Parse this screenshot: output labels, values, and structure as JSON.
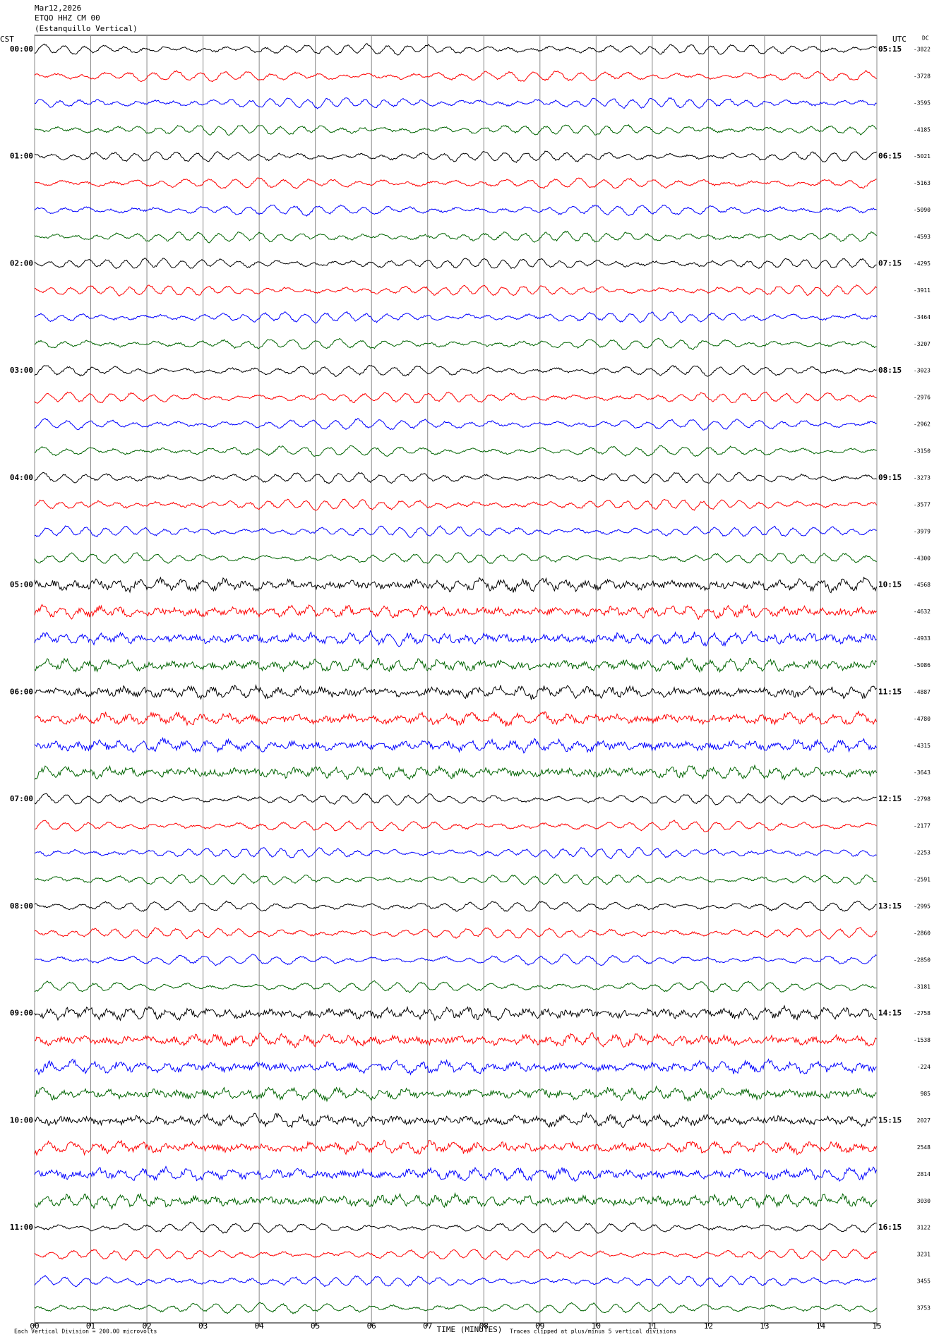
{
  "chart_data": {
    "type": "helicorder",
    "title": "Mar12,2026",
    "subtitle": "ETQO HHZ CM 00",
    "station": "(Estanquillo Vertical)",
    "left_axis_label": "CST",
    "right_axis_label": "UTC",
    "dc_label": "DC",
    "cst_labels": [
      "00:00",
      "01:00",
      "02:00",
      "03:00",
      "04:00",
      "05:00",
      "06:00",
      "07:00",
      "08:00",
      "09:00",
      "10:00",
      "11:00"
    ],
    "utc_labels": [
      "05:15",
      "06:15",
      "07:15",
      "08:15",
      "09:15",
      "10:15",
      "11:15",
      "12:15",
      "13:15",
      "14:15",
      "15:15",
      "16:15"
    ],
    "dc_values": [
      -3822,
      -3728,
      -3595,
      -4185,
      -5021,
      -5163,
      -5090,
      -4593,
      -4295,
      -3911,
      -3464,
      -3207,
      -3023,
      -2976,
      -2962,
      -3150,
      -3273,
      -3577,
      -3979,
      -4300,
      -4568,
      -4632,
      -4933,
      -5086,
      -4887,
      -4780,
      -4315,
      -3643,
      -2798,
      -2177,
      -2253,
      -2591,
      -2995,
      -2860,
      -2850,
      -3181,
      -2758,
      -1538,
      -224,
      985,
      2027,
      2548,
      2814,
      3030,
      3122,
      3231,
      3455,
      3753
    ],
    "trace_colors": [
      "#000000",
      "#ff0000",
      "#0000ff",
      "#006400"
    ],
    "xlim": [
      0,
      15
    ],
    "xticks": [
      {
        "value": 0,
        "label": "00"
      },
      {
        "value": 1,
        "label": "01"
      },
      {
        "value": 2,
        "label": "02"
      },
      {
        "value": 3,
        "label": "03"
      },
      {
        "value": 4,
        "label": "04"
      },
      {
        "value": 5,
        "label": "05"
      },
      {
        "value": 6,
        "label": "06"
      },
      {
        "value": 7,
        "label": "07"
      },
      {
        "value": 8,
        "label": "08"
      },
      {
        "value": 9,
        "label": "09"
      },
      {
        "value": 10,
        "label": "10"
      },
      {
        "value": 11,
        "label": "11"
      },
      {
        "value": 12,
        "label": "12"
      },
      {
        "value": 13,
        "label": "13"
      },
      {
        "value": 14,
        "label": "14"
      },
      {
        "value": 15,
        "label": "15"
      }
    ],
    "xlabel": "TIME (MINUTES)",
    "footer_left": "Each Vertical Division =  200.00 microvolts",
    "footer_right": "Traces clipped at plus/minus 5 vertical divisions",
    "grid": true
  }
}
